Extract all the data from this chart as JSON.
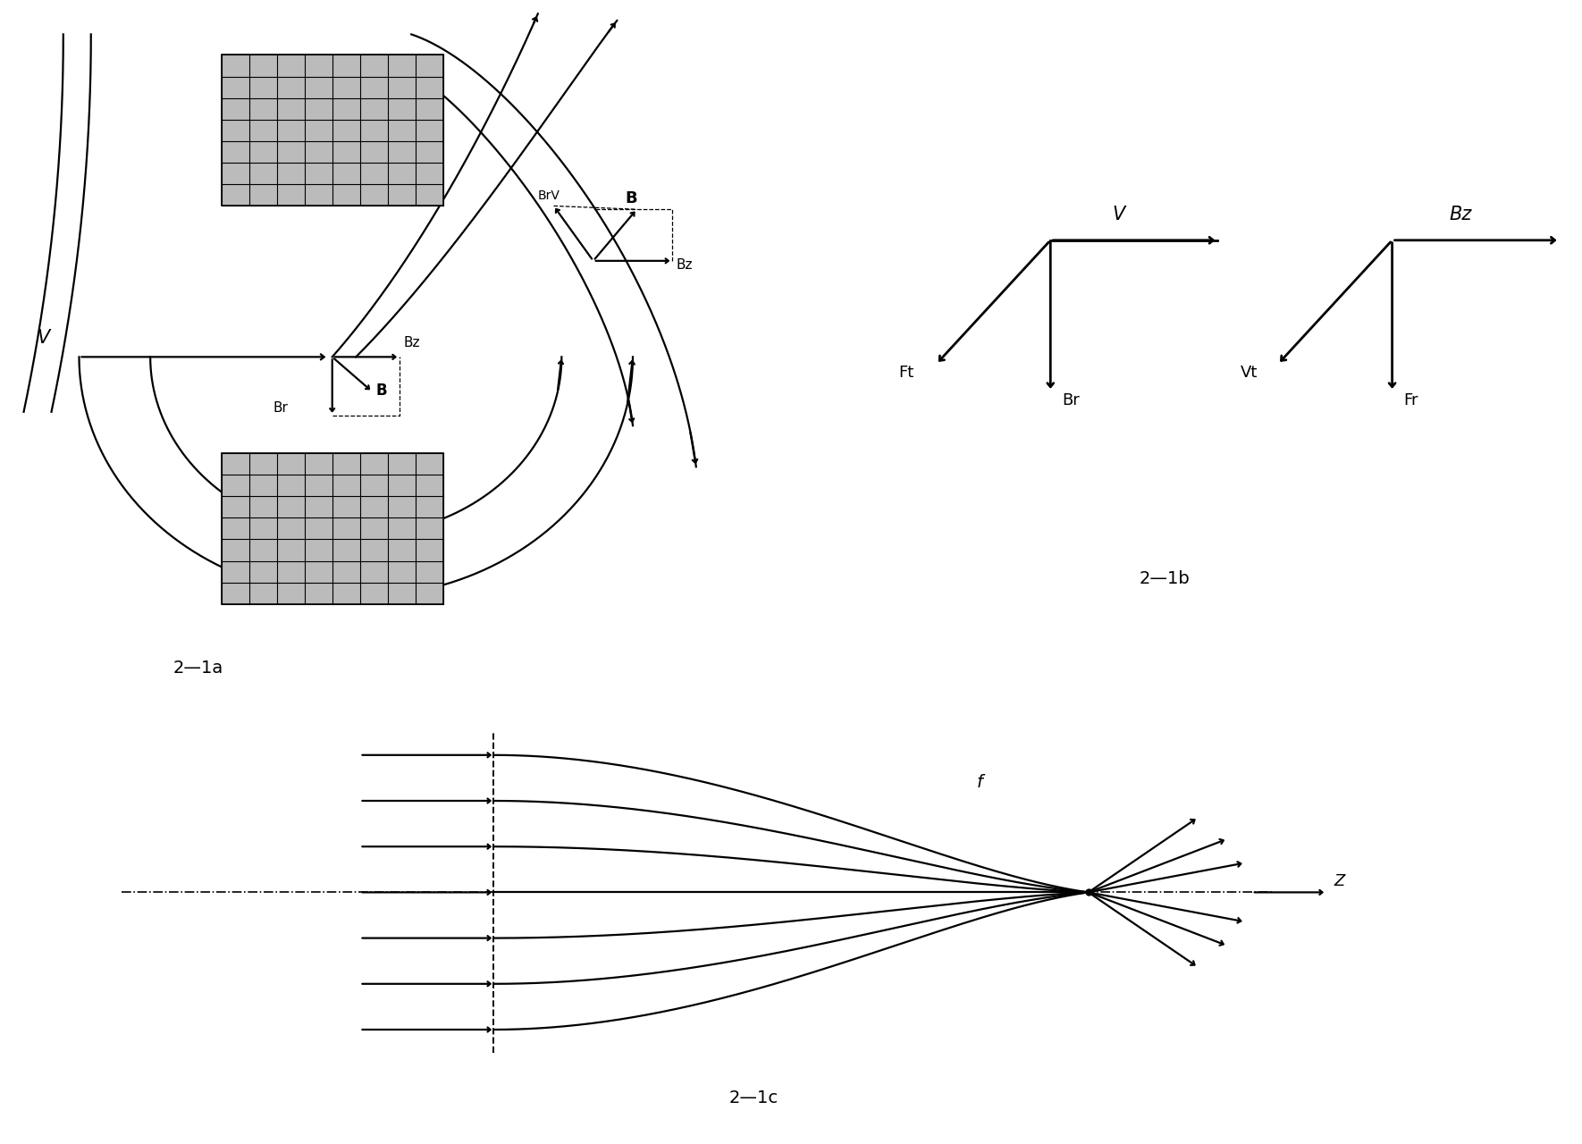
{
  "fig_width": 17.7,
  "fig_height": 12.8,
  "bg_color": "#ffffff",
  "line_color": "#000000",
  "label_2a": "2—1a",
  "label_2b": "2—1b",
  "label_2c": "2—1c"
}
